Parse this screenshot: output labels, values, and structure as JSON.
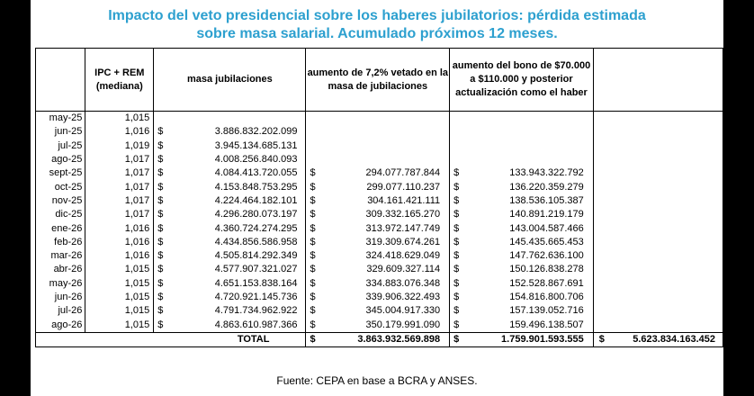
{
  "title_line1": "Impacto del veto presidencial sobre los haberes jubilatorios: pérdida estimada",
  "title_line2": "sobre masa salarial. Acumulado próximos 12 meses.",
  "headers": {
    "col1": "IPC + REM (mediana)",
    "col2": "masa jubilaciones",
    "col3": "aumento de 7,2% vetado en la masa de jubilaciones",
    "col4": "aumento del bono de $70.000 a $110.000 y posterior actualización como el haber"
  },
  "currency_symbol": "$",
  "rows": [
    {
      "month": "may-25",
      "ipc": "1,015",
      "masa": "",
      "aumento": "",
      "bono": ""
    },
    {
      "month": "jun-25",
      "ipc": "1,016",
      "masa": "3.886.832.202.099",
      "aumento": "",
      "bono": ""
    },
    {
      "month": "jul-25",
      "ipc": "1,019",
      "masa": "3.945.134.685.131",
      "aumento": "",
      "bono": ""
    },
    {
      "month": "ago-25",
      "ipc": "1,017",
      "masa": "4.008.256.840.093",
      "aumento": "",
      "bono": ""
    },
    {
      "month": "sept-25",
      "ipc": "1,017",
      "masa": "4.084.413.720.055",
      "aumento": "294.077.787.844",
      "bono": "133.943.322.792"
    },
    {
      "month": "oct-25",
      "ipc": "1,017",
      "masa": "4.153.848.753.295",
      "aumento": "299.077.110.237",
      "bono": "136.220.359.279"
    },
    {
      "month": "nov-25",
      "ipc": "1,017",
      "masa": "4.224.464.182.101",
      "aumento": "304.161.421.111",
      "bono": "138.536.105.387"
    },
    {
      "month": "dic-25",
      "ipc": "1,017",
      "masa": "4.296.280.073.197",
      "aumento": "309.332.165.270",
      "bono": "140.891.219.179"
    },
    {
      "month": "ene-26",
      "ipc": "1,016",
      "masa": "4.360.724.274.295",
      "aumento": "313.972.147.749",
      "bono": "143.004.587.466"
    },
    {
      "month": "feb-26",
      "ipc": "1,016",
      "masa": "4.434.856.586.958",
      "aumento": "319.309.674.261",
      "bono": "145.435.665.453"
    },
    {
      "month": "mar-26",
      "ipc": "1,016",
      "masa": "4.505.814.292.349",
      "aumento": "324.418.629.049",
      "bono": "147.762.636.100"
    },
    {
      "month": "abr-26",
      "ipc": "1,015",
      "masa": "4.577.907.321.027",
      "aumento": "329.609.327.114",
      "bono": "150.126.838.278"
    },
    {
      "month": "may-26",
      "ipc": "1,015",
      "masa": "4.651.153.838.164",
      "aumento": "334.883.076.348",
      "bono": "152.528.867.691"
    },
    {
      "month": "jun-26",
      "ipc": "1,015",
      "masa": "4.720.921.145.736",
      "aumento": "339.906.322.493",
      "bono": "154.816.800.706"
    },
    {
      "month": "jul-26",
      "ipc": "1,015",
      "masa": "4.791.734.962.922",
      "aumento": "345.004.917.330",
      "bono": "157.139.052.716"
    },
    {
      "month": "ago-26",
      "ipc": "1,015",
      "masa": "4.863.610.987.366",
      "aumento": "350.179.991.090",
      "bono": "159.496.138.507"
    }
  ],
  "total": {
    "label": "TOTAL",
    "aumento": "3.863.932.569.898",
    "bono": "1.759.901.593.555",
    "grand": "5.623.834.163.452"
  },
  "source": "Fuente: CEPA en base a BCRA y ANSES."
}
